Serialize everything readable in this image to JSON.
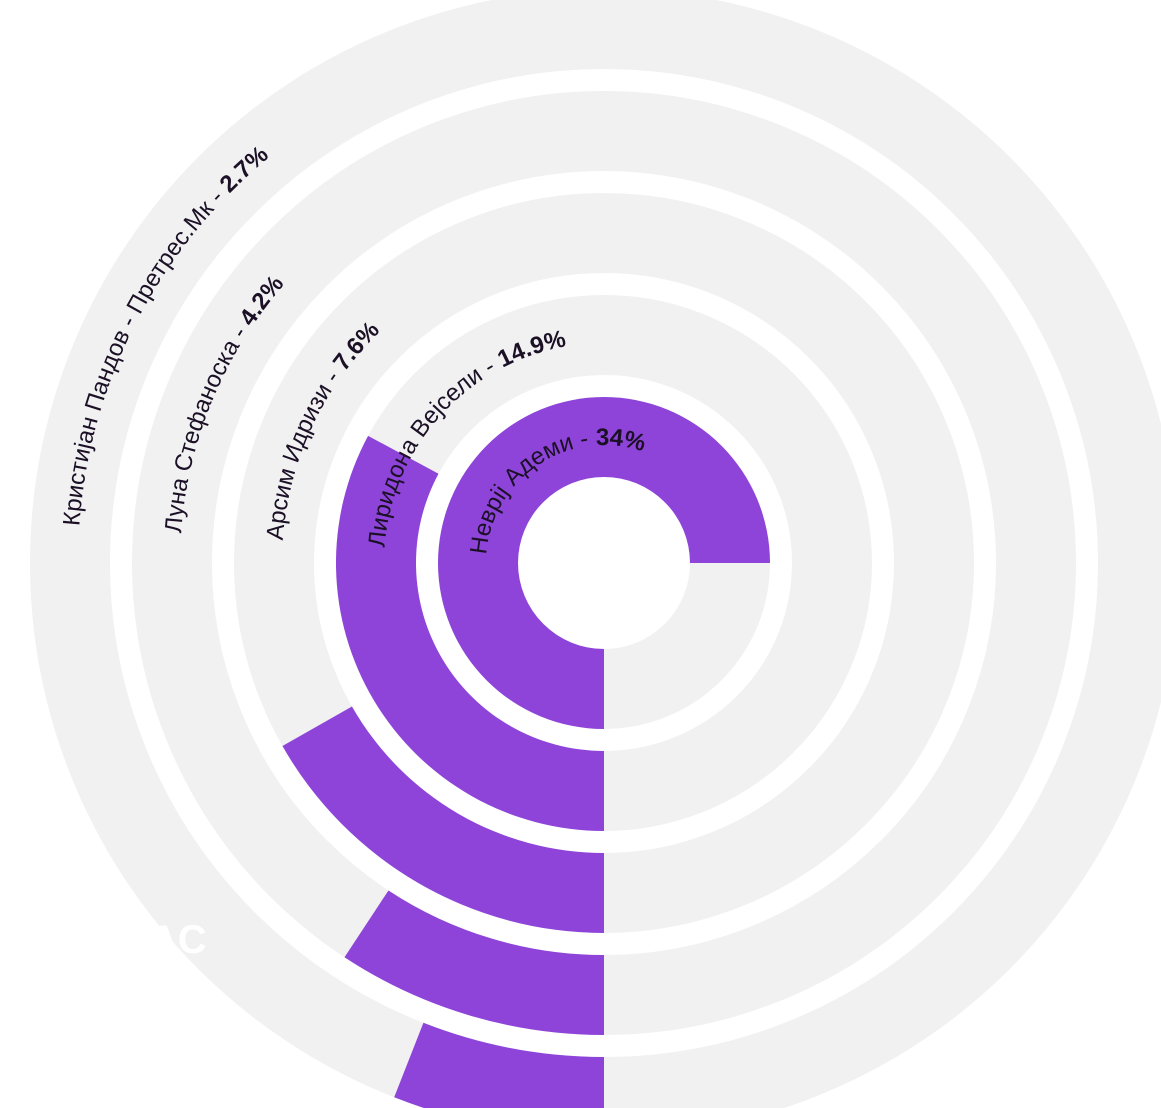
{
  "chart_data": {
    "type": "radial-bar",
    "unit": "%",
    "series": [
      {
        "name": "Неврij Адеми",
        "label": "Неврij Адеми - ",
        "value": 34,
        "value_label": "34%"
      },
      {
        "name": "Лиридона Вејсели",
        "label": "Лиридона Вејсели - ",
        "value": 14.9,
        "value_label": "14.9%"
      },
      {
        "name": "Арсим Идризи",
        "label": "Арсим Идризи - ",
        "value": 7.6,
        "value_label": "7.6%"
      },
      {
        "name": "Луна Стефаноска",
        "label": "Луна Стефаноска - ",
        "value": 4.2,
        "value_label": "4.2%"
      },
      {
        "name": "Кристијан Пандов - Претрес.Мк",
        "label": "Кристијан Пандов - Претрес.Мк - ",
        "value": 2.7,
        "value_label": "2.7%"
      }
    ],
    "colors": {
      "bar": "#8e44d9",
      "track": "#f1f1f1",
      "background": "#ffffff"
    }
  },
  "watermark": {
    "text": "САС"
  }
}
